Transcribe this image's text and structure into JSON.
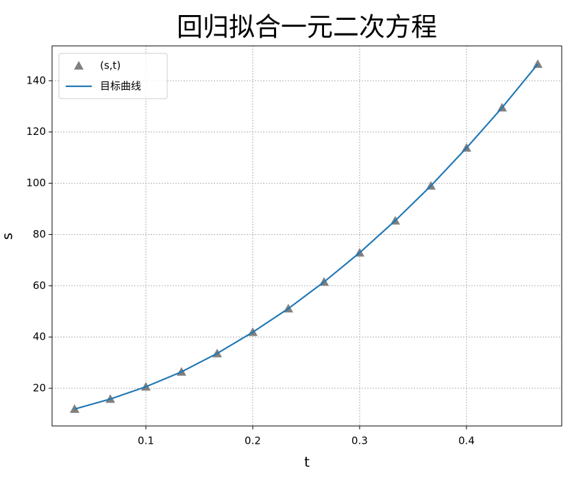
{
  "chart_data": {
    "type": "line",
    "title": "回归拟合一元二次方程",
    "x_label": "t",
    "y_label": "s",
    "x": [
      0.0333,
      0.0667,
      0.1,
      0.1333,
      0.1667,
      0.2,
      0.2333,
      0.2667,
      0.3,
      0.3333,
      0.3667,
      0.4,
      0.4333,
      0.4667
    ],
    "series": [
      {
        "name": "(s,t)",
        "kind": "scatter",
        "marker": "triangle",
        "color": "#808080",
        "values": [
          11.9,
          15.8,
          20.6,
          26.4,
          33.6,
          41.9,
          51.1,
          61.5,
          72.9,
          85.4,
          99.0,
          113.8,
          129.5,
          146.5
        ]
      },
      {
        "name": "目标曲线",
        "kind": "line",
        "color": "#1f77b4",
        "values": [
          11.9,
          15.8,
          20.6,
          26.4,
          33.6,
          41.9,
          51.1,
          61.5,
          72.9,
          85.4,
          99.0,
          113.8,
          129.5,
          146.5
        ]
      }
    ],
    "xlim": [
      0.0122,
      0.4891
    ],
    "ylim": [
      5.3,
      153.6
    ],
    "xticks": [
      0.1,
      0.2,
      0.3,
      0.4
    ],
    "yticks": [
      20,
      40,
      60,
      80,
      100,
      120,
      140
    ],
    "grid": true,
    "legend": "upper left"
  }
}
